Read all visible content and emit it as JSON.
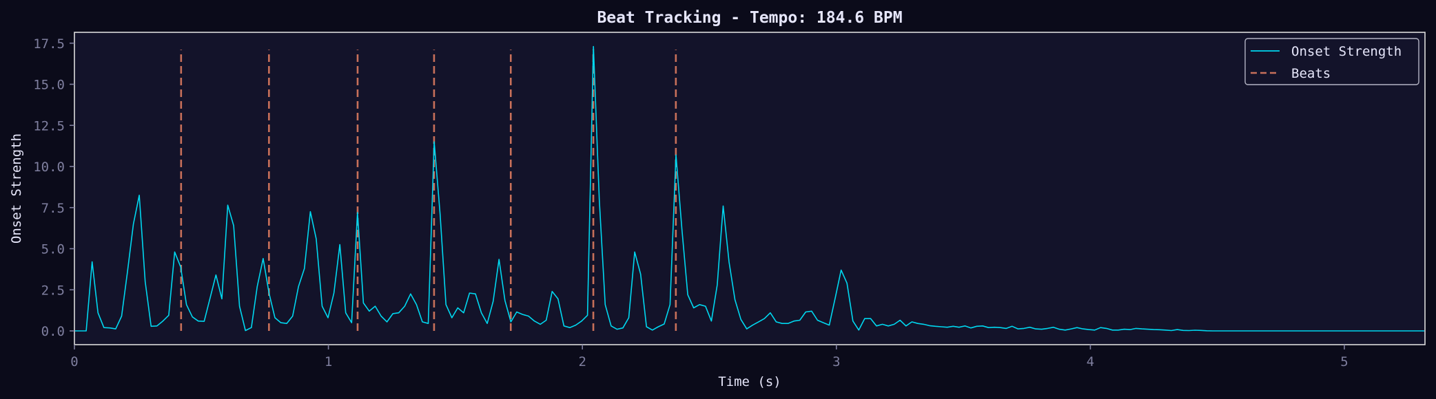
{
  "chart_data": {
    "type": "line",
    "title": "Beat Tracking - Tempo: 184.6 BPM",
    "tempo_bpm": 184.6,
    "xlabel": "Time (s)",
    "ylabel": "Onset Strength",
    "xlim": [
      0,
      5.32
    ],
    "ylim": [
      -0.9,
      18.2
    ],
    "x_ticks": [
      0,
      1,
      2,
      3,
      4,
      5
    ],
    "x_tick_labels": [
      "0",
      "1",
      "2",
      "3",
      "4",
      "5"
    ],
    "y_ticks": [
      0.0,
      2.5,
      5.0,
      7.5,
      10.0,
      12.5,
      15.0,
      17.5
    ],
    "y_tick_labels": [
      "0.0",
      "2.5",
      "5.0",
      "7.5",
      "10.0",
      "12.5",
      "15.0",
      "17.5"
    ],
    "grid": false,
    "legend_position": "upper right",
    "legend": [
      "Onset Strength",
      "Beats"
    ],
    "colors": {
      "onset": "#00d8f0",
      "beats": "#c8705a",
      "axes_bg": "#13132a",
      "fig_bg": "#0b0b1a",
      "spine": "#dcdcdc",
      "tick": "#7f7f9f",
      "text": "#e6e6fa"
    },
    "series": [
      {
        "name": "Onset Strength",
        "style": "solid",
        "dt": 0.02322,
        "values": [
          0,
          0,
          0,
          4.2,
          1.1,
          0.2,
          0.18,
          0.12,
          0.9,
          3.6,
          6.5,
          8.25,
          3.0,
          0.28,
          0.3,
          0.6,
          0.95,
          4.8,
          3.9,
          1.6,
          0.85,
          0.6,
          0.58,
          2.0,
          3.4,
          1.95,
          7.65,
          6.4,
          1.5,
          0.02,
          0.2,
          2.7,
          4.4,
          2.3,
          0.8,
          0.5,
          0.45,
          0.9,
          2.7,
          3.8,
          7.25,
          5.6,
          1.5,
          0.8,
          2.3,
          5.25,
          1.1,
          0.5,
          7.2,
          1.7,
          1.2,
          1.5,
          0.9,
          0.55,
          1.05,
          1.1,
          1.5,
          2.25,
          1.6,
          0.55,
          0.45,
          11.5,
          7.1,
          1.6,
          0.8,
          1.4,
          1.1,
          2.3,
          2.25,
          1.1,
          0.45,
          1.8,
          4.35,
          1.85,
          0.55,
          1.15,
          1.0,
          0.9,
          0.6,
          0.4,
          0.65,
          2.4,
          1.95,
          0.3,
          0.2,
          0.35,
          0.6,
          0.95,
          17.3,
          8.0,
          1.6,
          0.3,
          0.1,
          0.18,
          0.8,
          4.8,
          3.45,
          0.25,
          0.05,
          0.25,
          0.42,
          1.6,
          10.7,
          6.2,
          2.2,
          1.4,
          1.6,
          1.5,
          0.6,
          2.8,
          7.6,
          4.2,
          1.9,
          0.7,
          0.12,
          0.35,
          0.55,
          0.75,
          1.1,
          0.55,
          0.45,
          0.45,
          0.6,
          0.65,
          1.15,
          1.2,
          0.65,
          0.5,
          0.35,
          2.0,
          3.7,
          2.9,
          0.6,
          0.05,
          0.75,
          0.75,
          0.3,
          0.4,
          0.3,
          0.4,
          0.65,
          0.3,
          0.55,
          0.45,
          0.4,
          0.32,
          0.28,
          0.25,
          0.22,
          0.28,
          0.22,
          0.3,
          0.18,
          0.28,
          0.3,
          0.2,
          0.22,
          0.2,
          0.15,
          0.28,
          0.12,
          0.15,
          0.22,
          0.12,
          0.1,
          0.15,
          0.22,
          0.1,
          0.05,
          0.12,
          0.2,
          0.12,
          0.08,
          0.05,
          0.2,
          0.15,
          0.05,
          0.05,
          0.1,
          0.08,
          0.15,
          0.12,
          0.1,
          0.08,
          0.07,
          0.05,
          0.02,
          0.08,
          0.03,
          0.02,
          0.04,
          0.03,
          0.01,
          0,
          0,
          0,
          0,
          0,
          0,
          0,
          0,
          0,
          0,
          0,
          0,
          0,
          0,
          0,
          0,
          0,
          0,
          0,
          0,
          0,
          0,
          0,
          0,
          0,
          0,
          0,
          0,
          0,
          0,
          0,
          0,
          0,
          0,
          0,
          0,
          0,
          0,
          0,
          0,
          0,
          0
        ]
      },
      {
        "name": "Beats",
        "style": "dashed",
        "x": [
          0.42,
          0.766,
          1.115,
          1.416,
          1.718,
          2.043,
          2.368
        ],
        "y_range": [
          0,
          17.1
        ]
      }
    ]
  }
}
